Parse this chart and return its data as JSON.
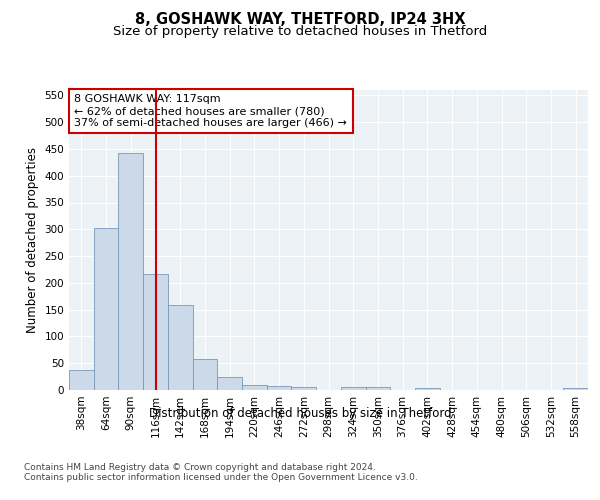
{
  "title": "8, GOSHAWK WAY, THETFORD, IP24 3HX",
  "subtitle": "Size of property relative to detached houses in Thetford",
  "xlabel": "Distribution of detached houses by size in Thetford",
  "ylabel": "Number of detached properties",
  "categories": [
    "38sqm",
    "64sqm",
    "90sqm",
    "116sqm",
    "142sqm",
    "168sqm",
    "194sqm",
    "220sqm",
    "246sqm",
    "272sqm",
    "298sqm",
    "324sqm",
    "350sqm",
    "376sqm",
    "402sqm",
    "428sqm",
    "454sqm",
    "480sqm",
    "506sqm",
    "532sqm",
    "558sqm"
  ],
  "values": [
    38,
    303,
    443,
    217,
    158,
    58,
    25,
    10,
    8,
    5,
    0,
    5,
    5,
    0,
    3,
    0,
    0,
    0,
    0,
    0,
    3
  ],
  "bar_color": "#ccd9e8",
  "bar_edge_color": "#7799bb",
  "marker_line_color": "#cc0000",
  "annotation_text": "8 GOSHAWK WAY: 117sqm\n← 62% of detached houses are smaller (780)\n37% of semi-detached houses are larger (466) →",
  "annotation_box_color": "#ffffff",
  "annotation_box_edge": "#cc0000",
  "ylim": [
    0,
    560
  ],
  "yticks": [
    0,
    50,
    100,
    150,
    200,
    250,
    300,
    350,
    400,
    450,
    500,
    550
  ],
  "footer_text": "Contains HM Land Registry data © Crown copyright and database right 2024.\nContains public sector information licensed under the Open Government Licence v3.0.",
  "background_color": "#edf2f7",
  "grid_color": "#ffffff",
  "title_fontsize": 10.5,
  "subtitle_fontsize": 9.5,
  "axis_label_fontsize": 8.5,
  "tick_fontsize": 7.5,
  "annotation_fontsize": 8,
  "footer_fontsize": 6.5
}
